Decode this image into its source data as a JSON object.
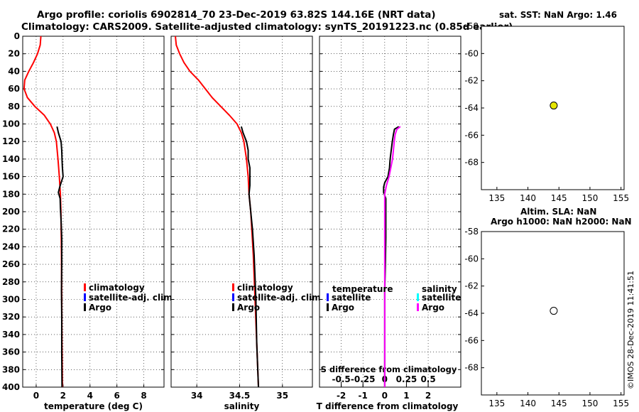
{
  "header": {
    "line1": "Argo profile: coriolis 6902814_70 23-Dec-2019 63.82S 144.16E (NRT data)",
    "line2": "Climatology: CARS2009. Satellite-adjusted climatology: synTS_20191223.nc (0.85d earlier)"
  },
  "right_panels": {
    "sst_title": "sat. SST: NaN Argo: 1.46",
    "sla_title_1": "Altim. SLA: NaN",
    "sla_title_2": "Argo h1000: NaN h2000: NaN"
  },
  "stamp": "©IMOS 28-Dec-2019 11:41:51",
  "colors": {
    "climatology": "#ff0000",
    "satellite": "#0000ff",
    "argo": "#000000",
    "sal_satellite": "#00ffff",
    "sal_argo": "#ff00ff",
    "marker_fill": "#e6e600"
  },
  "chart_data": [
    {
      "type": "line",
      "name": "temperature-profile",
      "xlabel": "temperature (deg C)",
      "ylabel": "depth",
      "xlim": [
        -1,
        9.5
      ],
      "ylim": [
        400,
        0
      ],
      "xticks": [
        0,
        2,
        4,
        6,
        8
      ],
      "yticks": [
        0,
        20,
        40,
        60,
        80,
        100,
        120,
        140,
        160,
        180,
        200,
        220,
        240,
        260,
        280,
        300,
        320,
        340,
        360,
        380,
        400
      ],
      "grid": true,
      "legend_position": "lower-right",
      "legend": [
        "climatology",
        "satellite-adj. clim.",
        "Argo"
      ],
      "series": [
        {
          "name": "climatology",
          "color": "#ff0000",
          "depth": [
            0,
            10,
            20,
            30,
            40,
            50,
            60,
            70,
            80,
            90,
            100,
            110,
            120,
            140,
            160,
            180,
            200,
            250,
            300,
            350,
            400
          ],
          "values": [
            0.35,
            0.3,
            0.1,
            -0.2,
            -0.55,
            -0.85,
            -0.9,
            -0.65,
            -0.1,
            0.6,
            1.05,
            1.35,
            1.5,
            1.62,
            1.72,
            1.8,
            1.84,
            1.88,
            1.9,
            1.92,
            1.95
          ]
        },
        {
          "name": "Argo",
          "color": "#000000",
          "depth": [
            103,
            110,
            120,
            130,
            140,
            150,
            160,
            167,
            172,
            178,
            185,
            195,
            210,
            230,
            260,
            290,
            320,
            360,
            400
          ],
          "values": [
            1.55,
            1.65,
            1.85,
            1.9,
            1.92,
            1.95,
            2.0,
            1.85,
            1.75,
            1.65,
            1.78,
            1.8,
            1.85,
            1.9,
            1.9,
            1.88,
            1.9,
            1.9,
            1.92
          ]
        }
      ]
    },
    {
      "type": "line",
      "name": "salinity-profile",
      "xlabel": "salinity",
      "xlim": [
        33.7,
        35.35
      ],
      "ylim": [
        400,
        0
      ],
      "xticks": [
        34,
        34.5,
        35
      ],
      "xtick_labels": [
        "34",
        "34.5",
        "35"
      ],
      "grid": true,
      "legend_position": "lower-right",
      "legend": [
        "climatology",
        "satellite-adj. clim.",
        "Argo"
      ],
      "series": [
        {
          "name": "climatology",
          "color": "#ff0000",
          "depth": [
            0,
            10,
            20,
            30,
            40,
            50,
            60,
            70,
            80,
            90,
            100,
            110,
            120,
            140,
            160,
            180,
            200,
            250,
            300,
            350,
            400
          ],
          "values": [
            33.75,
            33.76,
            33.8,
            33.85,
            33.92,
            34.02,
            34.1,
            34.18,
            34.28,
            34.38,
            34.47,
            34.52,
            34.55,
            34.58,
            34.6,
            34.61,
            34.63,
            34.66,
            34.68,
            34.7,
            34.72
          ]
        },
        {
          "name": "Argo",
          "color": "#000000",
          "depth": [
            103,
            110,
            120,
            130,
            140,
            150,
            160,
            170,
            180,
            190,
            200,
            220,
            250,
            300,
            350,
            400
          ],
          "values": [
            34.52,
            34.54,
            34.58,
            34.6,
            34.6,
            34.62,
            34.62,
            34.62,
            34.61,
            34.62,
            34.63,
            34.65,
            34.67,
            34.69,
            34.7,
            34.72
          ]
        }
      ]
    },
    {
      "type": "line",
      "name": "difference-profile",
      "xlabel": "T difference from climatology",
      "top_label": "S difference from climatology",
      "xlim": [
        -3,
        3.5
      ],
      "ylim": [
        400,
        0
      ],
      "xticks": [
        -2,
        -1,
        0,
        1,
        2
      ],
      "sal_xticks": [
        -0.5,
        -0.25,
        0,
        0.25,
        0.5
      ],
      "sal_xtick_labels": [
        "-0.5",
        "-0.25",
        "0",
        "0.25",
        "0.5"
      ],
      "sal_scale": 4,
      "grid": true,
      "legend_left_title": "temperature",
      "legend_right_title": "salinity",
      "legend_left": [
        "satellite",
        "Argo"
      ],
      "legend_right": [
        "satellite",
        "Argo"
      ],
      "series": [
        {
          "name": "T difference (Argo)",
          "color": "#000000",
          "depth": [
            103,
            106,
            112,
            120,
            130,
            140,
            150,
            160,
            167,
            172,
            178,
            185,
            195,
            210,
            230,
            260,
            290,
            320,
            360,
            400
          ],
          "values": [
            0.65,
            0.45,
            0.4,
            0.35,
            0.3,
            0.25,
            0.22,
            0.15,
            0.0,
            -0.05,
            -0.05,
            0.05,
            0.05,
            0.05,
            0.05,
            0.03,
            0.0,
            0.0,
            0.0,
            0.0
          ]
        },
        {
          "name": "S difference (Argo)",
          "color": "#ff00ff",
          "depth": [
            103,
            106,
            112,
            120,
            130,
            140,
            150,
            160,
            170,
            180,
            190,
            200,
            220,
            250,
            300,
            350,
            400
          ],
          "values": [
            0.18,
            0.14,
            0.12,
            0.11,
            0.1,
            0.09,
            0.07,
            0.05,
            0.02,
            0.0,
            0.0,
            0.0,
            0.0,
            0.0,
            0.0,
            0.0,
            0.0
          ]
        }
      ]
    },
    {
      "type": "scatter",
      "name": "sst-map",
      "xlim": [
        132.5,
        155.5
      ],
      "ylim": [
        -70,
        -58
      ],
      "xticks": [
        135,
        140,
        145,
        150,
        155
      ],
      "yticks": [
        -58,
        -60,
        -62,
        -64,
        -66,
        -68
      ],
      "points": [
        {
          "x": 144.16,
          "y": -63.82,
          "fill": "#e6e600"
        }
      ]
    },
    {
      "type": "scatter",
      "name": "sla-map",
      "xlim": [
        132.5,
        155.5
      ],
      "ylim": [
        -70,
        -58
      ],
      "xticks": [
        135,
        140,
        145,
        150,
        155
      ],
      "yticks": [
        -58,
        -60,
        -62,
        -64,
        -66,
        -68
      ],
      "points": [
        {
          "x": 144.16,
          "y": -63.82,
          "fill": "#ffffff"
        }
      ]
    }
  ]
}
